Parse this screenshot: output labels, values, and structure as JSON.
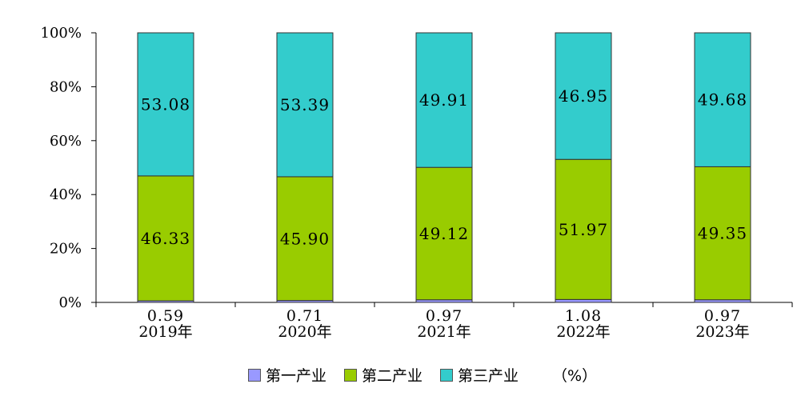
{
  "chart_data": {
    "type": "bar",
    "stacked": true,
    "percent_stacked": true,
    "categories": [
      "2019年",
      "2020年",
      "2021年",
      "2022年",
      "2023年"
    ],
    "series": [
      {
        "name": "第一产业",
        "values": [
          0.59,
          0.71,
          0.97,
          1.08,
          0.97
        ],
        "color": "#9999ff"
      },
      {
        "name": "第二产业",
        "values": [
          46.33,
          45.9,
          49.12,
          51.97,
          49.35
        ],
        "color": "#99cc00"
      },
      {
        "name": "第三产业",
        "values": [
          53.08,
          53.39,
          49.91,
          46.95,
          49.68
        ],
        "color": "#33cccc"
      }
    ],
    "value_labels": [
      [
        "0.59",
        "0.71",
        "0.97",
        "1.08",
        "0.97"
      ],
      [
        "46.33",
        "45.90",
        "49.12",
        "51.97",
        "49.35"
      ],
      [
        "53.08",
        "53.39",
        "49.91",
        "46.95",
        "49.68"
      ]
    ],
    "y_ticks": [
      "0%",
      "20%",
      "40%",
      "60%",
      "80%",
      "100%"
    ],
    "ylim": [
      0,
      100
    ],
    "unit_label": "（%）",
    "legend_position": "bottom",
    "grid": false
  }
}
